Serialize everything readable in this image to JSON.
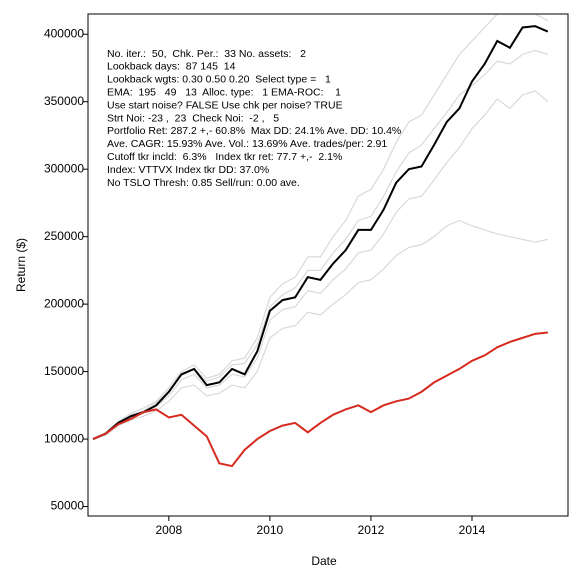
{
  "chart_data": {
    "type": "line",
    "x_label": "Date",
    "y_label": "Return ($)",
    "xlim": [
      2006.4,
      2015.9
    ],
    "xticks": [
      2008,
      2010,
      2012,
      2014
    ],
    "ylim": [
      43000,
      415000
    ],
    "yticks": [
      50000,
      100000,
      150000,
      200000,
      250000,
      300000,
      350000,
      400000
    ],
    "annotations": [
      "No. iter.:  50,  Chk. Per.:  33 No. assets:   2",
      "Lookback days:  87 145  14",
      "Lookback wgts: 0.30 0.50 0.20  Select type =   1",
      "EMA:  195   49   13  Alloc. type:   1 EMA-ROC:    1",
      "Use start noise? FALSE Use chk per noise? TRUE",
      "Strt Noi: -23 ,  23  Check Noi:  -2 ,   5",
      "Portfolio Ret: 287.2 +,- 60.8%  Max DD: 24.1% Ave. DD: 10.4%",
      "Ave. CAGR: 15.93% Ave. Vol.: 13.69% Ave. trades/per: 2.91",
      "Cutoff tkr incld:  6.3%   Index tkr ret: 77.7 +,-  2.1%",
      "Index: VTTVX Index tkr DD: 37.0%",
      "No TSLO Thresh: 0.85 Sell/run: 0.00 ave."
    ],
    "x": [
      2006.5,
      2006.75,
      2007.0,
      2007.25,
      2007.5,
      2007.75,
      2008.0,
      2008.25,
      2008.5,
      2008.75,
      2009.0,
      2009.25,
      2009.5,
      2009.75,
      2010.0,
      2010.25,
      2010.5,
      2010.75,
      2011.0,
      2011.25,
      2011.5,
      2011.75,
      2012.0,
      2012.25,
      2012.5,
      2012.75,
      2013.0,
      2013.25,
      2013.5,
      2013.75,
      2014.0,
      2014.25,
      2014.5,
      2014.75,
      2015.0,
      2015.25,
      2015.5
    ],
    "series": [
      {
        "color": "#d9d9d9",
        "values": [
          100000,
          105000,
          113000,
          119000,
          123000,
          128000,
          138000,
          150000,
          155000,
          145000,
          148000,
          158000,
          160000,
          175000,
          205000,
          215000,
          220000,
          235000,
          235000,
          250000,
          262000,
          280000,
          285000,
          300000,
          320000,
          335000,
          340000,
          355000,
          370000,
          385000,
          395000,
          405000,
          415000,
          415000,
          415000,
          415000,
          410000
        ]
      },
      {
        "color": "#d9d9d9",
        "values": [
          100000,
          104000,
          111000,
          116000,
          119000,
          124000,
          132000,
          144000,
          148000,
          138000,
          140000,
          148000,
          146000,
          160000,
          188000,
          196000,
          198000,
          210000,
          208000,
          218000,
          226000,
          238000,
          240000,
          252000,
          268000,
          278000,
          280000,
          292000,
          305000,
          316000,
          330000,
          340000,
          352000,
          345000,
          355000,
          358000,
          350000
        ]
      },
      {
        "color": "#d9d9d9",
        "values": [
          100000,
          103000,
          110000,
          114000,
          117000,
          121000,
          128000,
          138000,
          140000,
          132000,
          134000,
          140000,
          138000,
          150000,
          175000,
          182000,
          184000,
          194000,
          192000,
          200000,
          207000,
          216000,
          218000,
          226000,
          236000,
          242000,
          244000,
          250000,
          258000,
          262000,
          258000,
          255000,
          252000,
          250000,
          248000,
          246000,
          248000
        ]
      },
      {
        "color": "#d9d9d9",
        "values": [
          100000,
          104000,
          112000,
          118000,
          121000,
          127000,
          136000,
          147000,
          152000,
          143000,
          146000,
          155000,
          156000,
          170000,
          198000,
          207000,
          212000,
          225000,
          225000,
          238000,
          248000,
          262000,
          265000,
          280000,
          298000,
          312000,
          318000,
          330000,
          342000,
          355000,
          362000,
          370000,
          380000,
          378000,
          385000,
          388000,
          385000
        ]
      },
      {
        "color": "#000000",
        "values": [
          100000,
          104000,
          112000,
          117000,
          120000,
          125000,
          135000,
          148000,
          152000,
          140000,
          142000,
          152000,
          148000,
          165000,
          195000,
          203000,
          205000,
          220000,
          218000,
          230000,
          240000,
          255000,
          255000,
          270000,
          290000,
          300000,
          302000,
          318000,
          335000,
          345000,
          365000,
          378000,
          395000,
          390000,
          405000,
          406000,
          402000
        ]
      },
      {
        "color": "#d62a1e",
        "values": [
          100000,
          104000,
          111000,
          115000,
          120000,
          122000,
          116000,
          118000,
          110000,
          102000,
          82000,
          80000,
          92000,
          100000,
          106000,
          110000,
          112000,
          105000,
          112000,
          118000,
          122000,
          125000,
          120000,
          125000,
          128000,
          130000,
          135000,
          142000,
          147000,
          152000,
          158000,
          162000,
          168000,
          172000,
          175000,
          178000,
          179000
        ]
      }
    ]
  }
}
